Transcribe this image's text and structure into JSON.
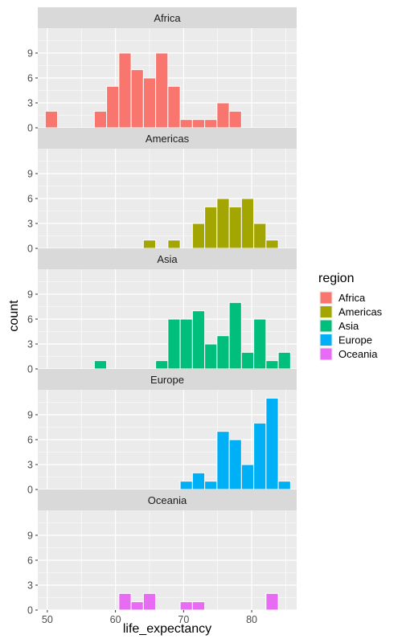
{
  "chart_data": {
    "type": "bar",
    "xlabel": "life_expectancy",
    "ylabel": "count",
    "xlim": [
      48.6,
      86.6
    ],
    "ylim": [
      0,
      12
    ],
    "x_ticks": [
      50,
      60,
      70,
      80
    ],
    "y_ticks": [
      0,
      3,
      6,
      9
    ],
    "legend": {
      "title": "region",
      "position": "right",
      "entries": [
        {
          "name": "Africa",
          "color": "#F8766D"
        },
        {
          "name": "Americas",
          "color": "#A3A500"
        },
        {
          "name": "Asia",
          "color": "#00BF7D"
        },
        {
          "name": "Europe",
          "color": "#00B0F6"
        },
        {
          "name": "Oceania",
          "color": "#E76BF3"
        }
      ]
    },
    "bin_width": 1.8,
    "bin_centers": [
      50.6,
      52.4,
      54.2,
      56.0,
      57.8,
      59.6,
      61.4,
      63.2,
      65.0,
      66.8,
      68.6,
      70.4,
      72.2,
      74.0,
      75.8,
      77.6,
      79.4,
      81.2,
      83.0,
      84.8
    ],
    "facets": [
      {
        "name": "Africa",
        "color": "#F8766D",
        "counts": [
          2,
          0,
          0,
          0,
          2,
          5,
          9,
          7,
          6,
          9,
          5,
          1,
          1,
          1,
          3,
          2,
          0,
          0,
          0,
          0
        ]
      },
      {
        "name": "Americas",
        "color": "#A3A500",
        "counts": [
          0,
          0,
          0,
          0,
          0,
          0,
          0,
          0,
          1,
          0,
          1,
          0,
          3,
          5,
          6,
          5,
          6,
          3,
          1,
          0
        ]
      },
      {
        "name": "Asia",
        "color": "#00BF7D",
        "counts": [
          0,
          0,
          0,
          0,
          1,
          0,
          0,
          0,
          0,
          1,
          6,
          6,
          7,
          3,
          4,
          8,
          2,
          6,
          1,
          2
        ]
      },
      {
        "name": "Europe",
        "color": "#00B0F6",
        "counts": [
          0,
          0,
          0,
          0,
          0,
          0,
          0,
          0,
          0,
          0,
          0,
          1,
          2,
          1,
          7,
          6,
          3,
          8,
          11,
          1
        ]
      },
      {
        "name": "Oceania",
        "color": "#E76BF3",
        "counts": [
          0,
          0,
          0,
          0,
          0,
          0,
          2,
          1,
          2,
          0,
          0,
          1,
          1,
          0,
          0,
          0,
          0,
          0,
          2,
          0
        ]
      }
    ]
  }
}
